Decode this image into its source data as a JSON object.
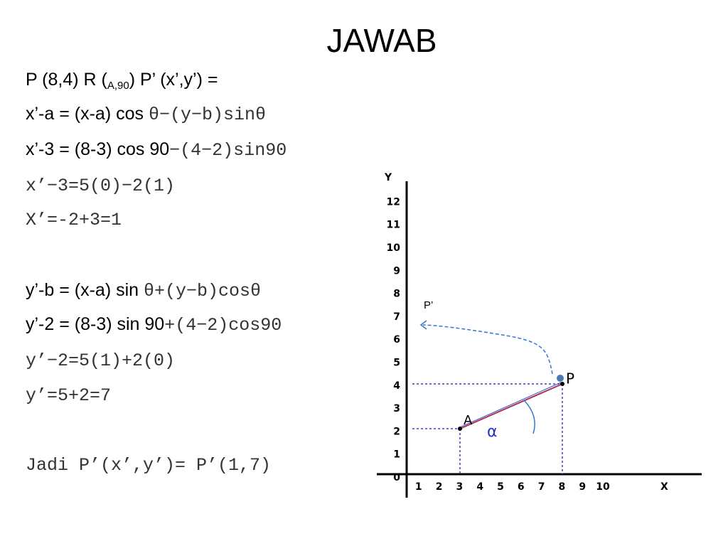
{
  "title": "JAWAB",
  "lines": [
    [
      {
        "style": "sans",
        "text": "P (8,4) R ("
      },
      {
        "style": "sub",
        "text": "A,90"
      },
      {
        "style": "sans",
        "text": ") P’ (x’,y’) ="
      }
    ],
    [
      {
        "style": "sans",
        "text": "x’-a = (x-a) cos "
      },
      {
        "style": "mono",
        "text": "θ−(y−b)sinθ"
      }
    ],
    [
      {
        "style": "sans",
        "text": "x’-3 = (8-3) cos 90"
      },
      {
        "style": "mono",
        "text": "−(4−2)sin90"
      }
    ],
    [
      {
        "style": "mono",
        "text": "x’−3=5(0)−2(1)"
      }
    ],
    [
      {
        "style": "mono",
        "text": "X’=-2+3=1"
      }
    ],
    [
      {
        "style": "sans",
        "text": "y’-b = (x-a) sin "
      },
      {
        "style": "mono",
        "text": "θ+(y−b)cosθ"
      }
    ],
    [
      {
        "style": "sans",
        "text": "y’-2 = (8-3) sin 90"
      },
      {
        "style": "mono",
        "text": "+(4−2)cos90"
      }
    ],
    [
      {
        "style": "mono",
        "text": "y’−2=5(1)+2(0)"
      }
    ],
    [
      {
        "style": "mono",
        "text": "y’=5+2=7"
      }
    ],
    [
      {
        "style": "mono",
        "text": "Jadi P’(x’,y’)= P’(1,7)"
      }
    ]
  ],
  "diagram": {
    "y_axis_label": "Y",
    "x_axis_label": "X",
    "y_ticks": [
      0,
      1,
      2,
      3,
      4,
      5,
      6,
      7,
      8,
      9,
      10,
      11,
      12
    ],
    "x_ticks": [
      1,
      2,
      3,
      4,
      5,
      6,
      7,
      8,
      9,
      10
    ],
    "point_a_label": "A",
    "point_p_label": "P",
    "point_p_prime_label": "P’",
    "angle_label": "α"
  }
}
